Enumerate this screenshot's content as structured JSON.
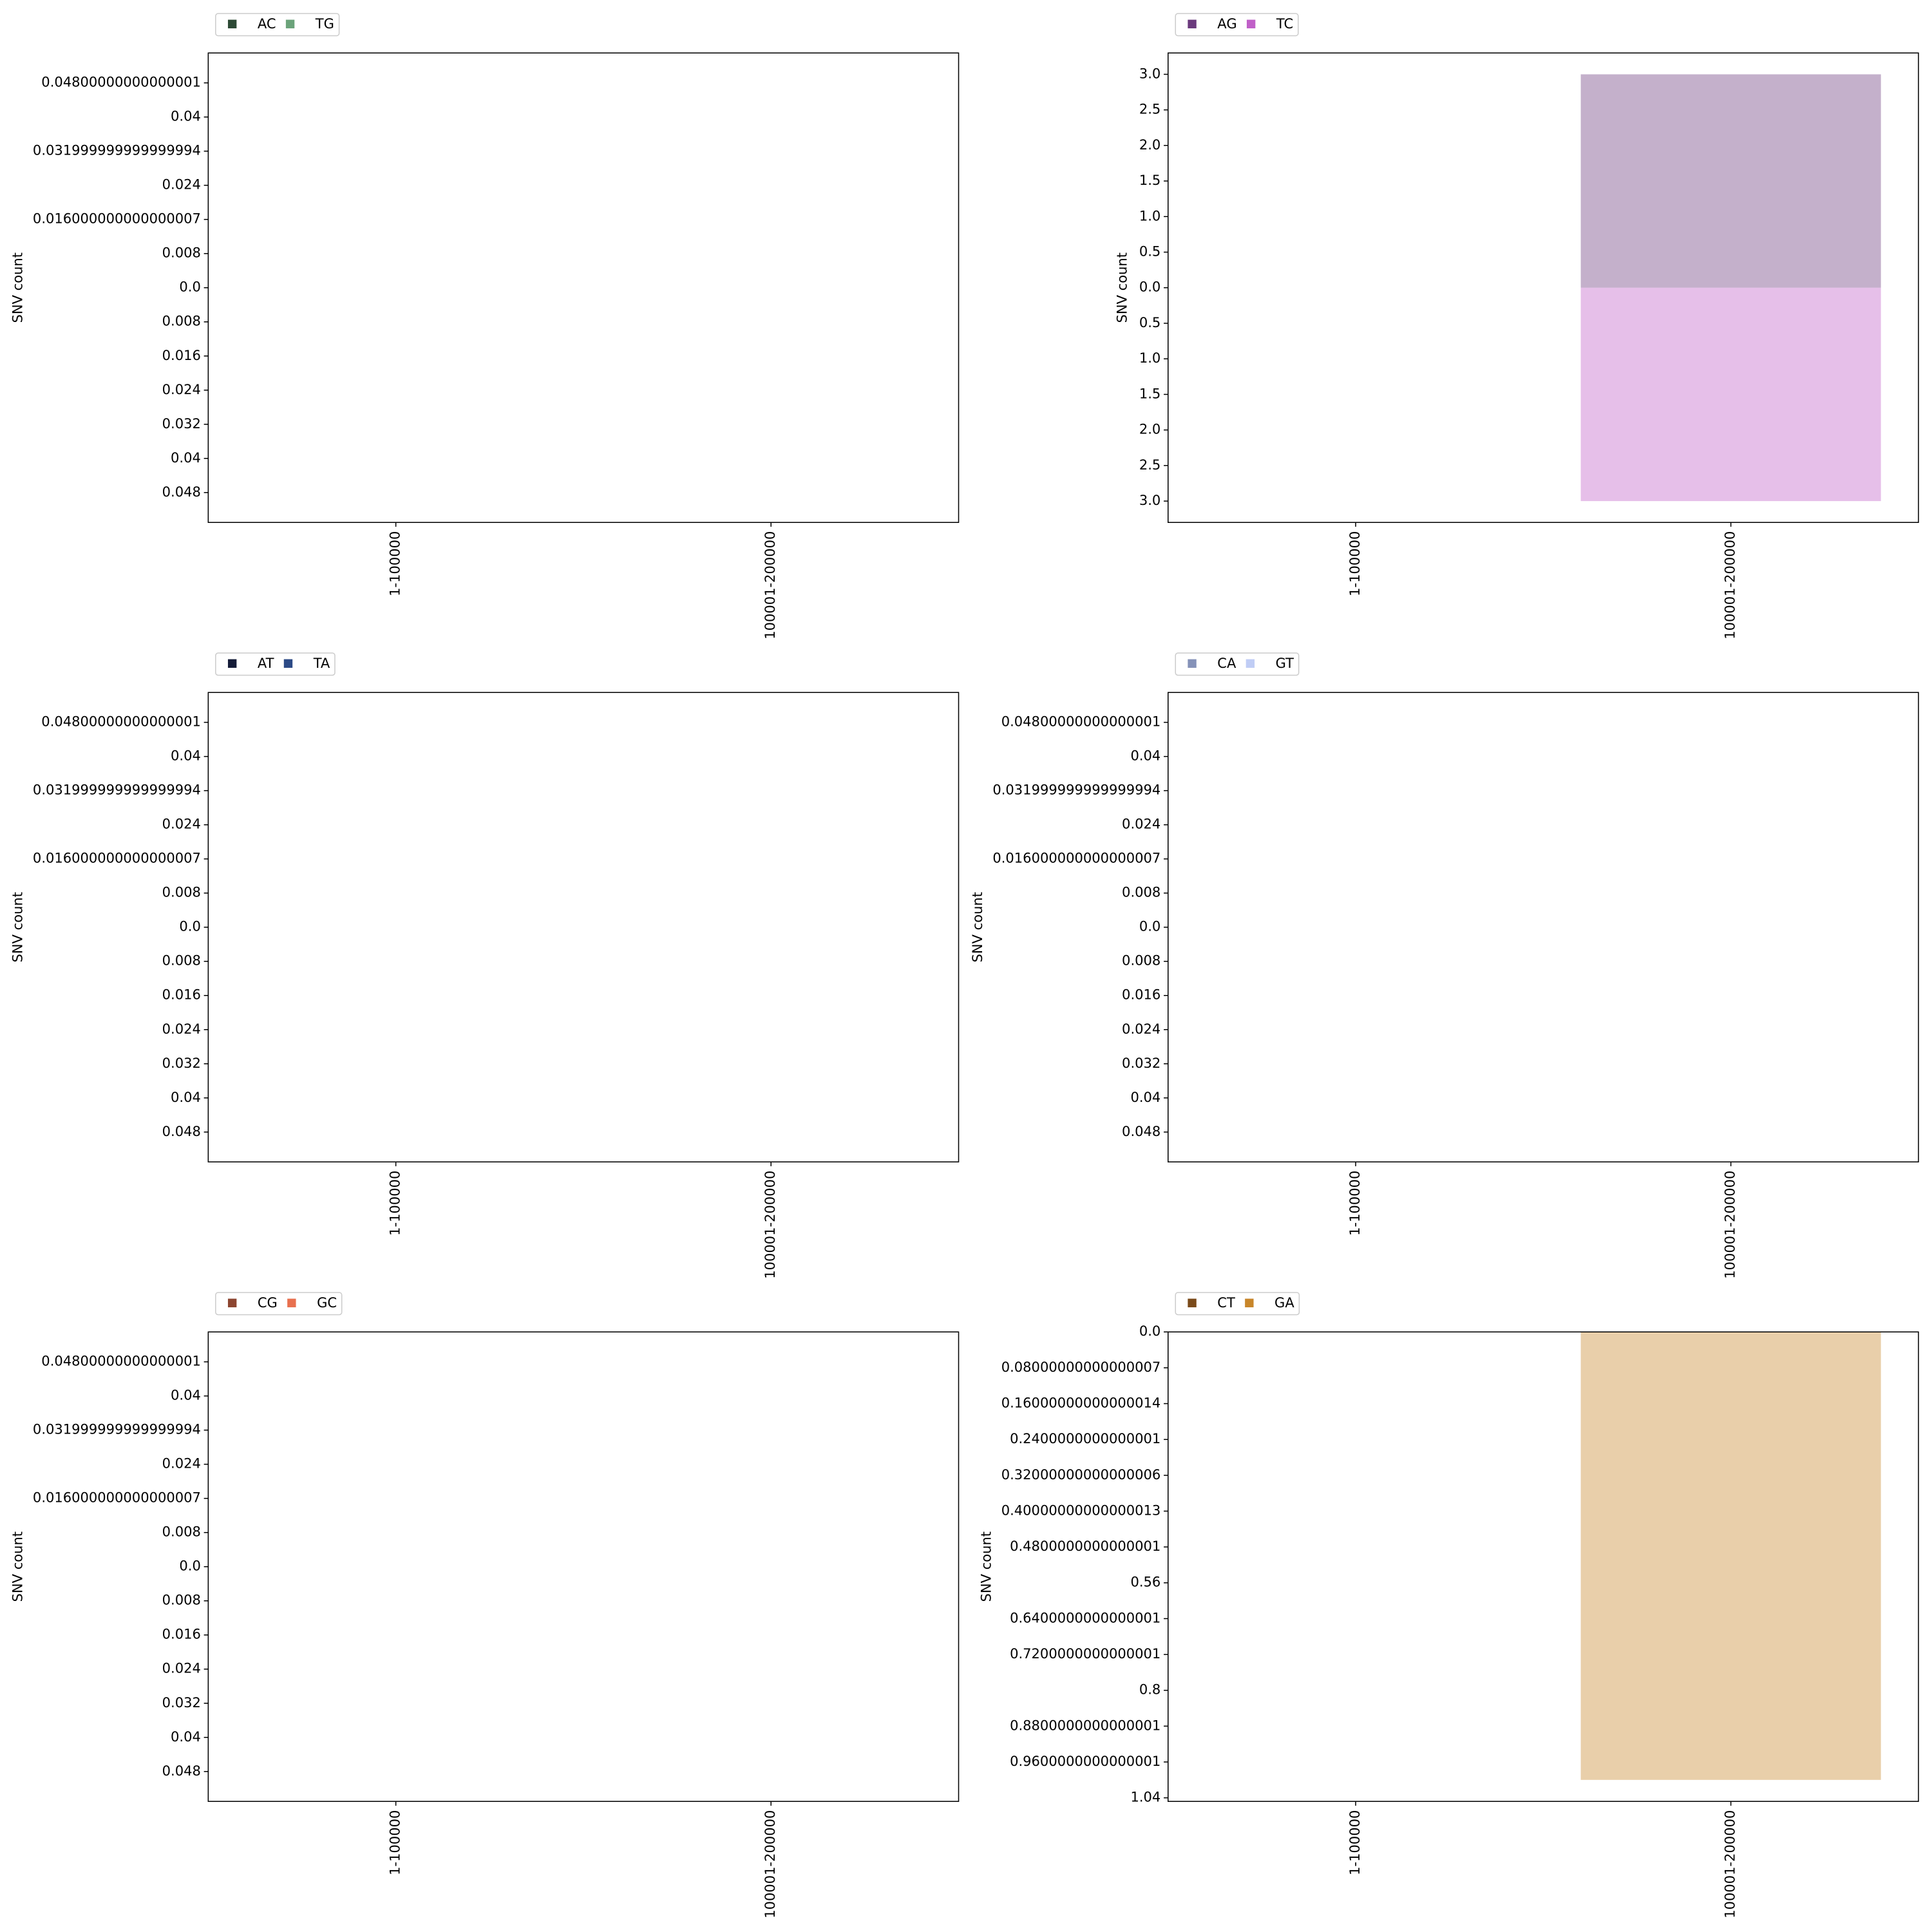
{
  "chart_data": [
    {
      "type": "bar",
      "y_label": "SNV count",
      "categories": [
        "1-100000",
        "100001-200000"
      ],
      "series": [
        {
          "name": "AC",
          "color": "#2d4a35",
          "values": [
            0,
            0
          ]
        },
        {
          "name": "TG",
          "color": "#6ba37a",
          "values": [
            0,
            0
          ]
        }
      ],
      "ylim": [
        -0.055,
        0.055
      ],
      "yticks": [
        0.04800000000000001,
        0.04,
        0.031999999999999994,
        0.024,
        0.016000000000000007,
        0.008,
        {
          "value": 0,
          "label": "0.0"
        },
        {
          "value": -0.008,
          "label": "0.008"
        },
        {
          "value": -0.016,
          "label": "0.016"
        },
        {
          "value": -0.024,
          "label": "0.024"
        },
        {
          "value": -0.032,
          "label": "0.032"
        },
        {
          "value": -0.04,
          "label": "0.04"
        },
        {
          "value": -0.048,
          "label": "0.048"
        }
      ]
    },
    {
      "type": "bar",
      "y_label": "SNV count",
      "categories": [
        "1-100000",
        "100001-200000"
      ],
      "series": [
        {
          "name": "AG",
          "color": "#6b3a7d",
          "values": [
            0,
            3
          ]
        },
        {
          "name": "TC",
          "color": "#c060c8",
          "values": [
            0,
            -3
          ]
        }
      ],
      "ylim": [
        -3.3,
        3.3
      ],
      "yticks": [
        {
          "value": 3,
          "label": "3.0"
        },
        2.5,
        {
          "value": 2,
          "label": "2.0"
        },
        1.5,
        {
          "value": 1,
          "label": "1.0"
        },
        0.5,
        {
          "value": 0,
          "label": "0.0"
        },
        {
          "value": -0.5,
          "label": "0.5"
        },
        {
          "value": -1,
          "label": "1.0"
        },
        {
          "value": -1.5,
          "label": "1.5"
        },
        {
          "value": -2,
          "label": "2.0"
        },
        {
          "value": -2.5,
          "label": "2.5"
        },
        {
          "value": -3,
          "label": "3.0"
        }
      ]
    },
    {
      "type": "bar",
      "y_label": "SNV count",
      "categories": [
        "1-100000",
        "100001-200000"
      ],
      "series": [
        {
          "name": "AT",
          "color": "#151c38",
          "values": [
            0,
            0
          ]
        },
        {
          "name": "TA",
          "color": "#2c4a86",
          "values": [
            0,
            0
          ]
        }
      ],
      "ylim": [
        -0.055,
        0.055
      ],
      "yticks": [
        0.04800000000000001,
        0.04,
        0.031999999999999994,
        0.024,
        0.016000000000000007,
        0.008,
        {
          "value": 0,
          "label": "0.0"
        },
        {
          "value": -0.008,
          "label": "0.008"
        },
        {
          "value": -0.016,
          "label": "0.016"
        },
        {
          "value": -0.024,
          "label": "0.024"
        },
        {
          "value": -0.032,
          "label": "0.032"
        },
        {
          "value": -0.04,
          "label": "0.04"
        },
        {
          "value": -0.048,
          "label": "0.048"
        }
      ]
    },
    {
      "type": "bar",
      "y_label": "SNV count",
      "categories": [
        "1-100000",
        "100001-200000"
      ],
      "series": [
        {
          "name": "CA",
          "color": "#8592b8",
          "values": [
            0,
            0
          ]
        },
        {
          "name": "GT",
          "color": "#c0cdf5",
          "values": [
            0,
            0
          ]
        }
      ],
      "ylim": [
        -0.055,
        0.055
      ],
      "yticks": [
        0.04800000000000001,
        0.04,
        0.031999999999999994,
        0.024,
        0.016000000000000007,
        0.008,
        {
          "value": 0,
          "label": "0.0"
        },
        {
          "value": -0.008,
          "label": "0.008"
        },
        {
          "value": -0.016,
          "label": "0.016"
        },
        {
          "value": -0.024,
          "label": "0.024"
        },
        {
          "value": -0.032,
          "label": "0.032"
        },
        {
          "value": -0.04,
          "label": "0.04"
        },
        {
          "value": -0.048,
          "label": "0.048"
        }
      ]
    },
    {
      "type": "bar",
      "y_label": "SNV count",
      "categories": [
        "1-100000",
        "100001-200000"
      ],
      "series": [
        {
          "name": "CG",
          "color": "#8c4530",
          "values": [
            0,
            0
          ]
        },
        {
          "name": "GC",
          "color": "#e8704f",
          "values": [
            0,
            0
          ]
        }
      ],
      "ylim": [
        -0.055,
        0.055
      ],
      "yticks": [
        0.04800000000000001,
        0.04,
        0.031999999999999994,
        0.024,
        0.016000000000000007,
        0.008,
        {
          "value": 0,
          "label": "0.0"
        },
        {
          "value": -0.008,
          "label": "0.008"
        },
        {
          "value": -0.016,
          "label": "0.016"
        },
        {
          "value": -0.024,
          "label": "0.024"
        },
        {
          "value": -0.032,
          "label": "0.032"
        },
        {
          "value": -0.04,
          "label": "0.04"
        },
        {
          "value": -0.048,
          "label": "0.048"
        }
      ]
    },
    {
      "type": "bar",
      "y_label": "SNV count",
      "categories": [
        "1-100000",
        "100001-200000"
      ],
      "series": [
        {
          "name": "CT",
          "color": "#7a4a1a",
          "values": [
            0,
            0
          ]
        },
        {
          "name": "GA",
          "color": "#c8862a",
          "values": [
            0,
            -1
          ]
        }
      ],
      "ylim": [
        -1.048,
        0
      ],
      "yticks": [
        {
          "value": 0,
          "label": "0.0"
        },
        {
          "value": -0.08000000000000007,
          "label": "0.08000000000000007"
        },
        {
          "value": -0.16000000000000014,
          "label": "0.16000000000000014"
        },
        {
          "value": -0.2400000000000001,
          "label": "0.2400000000000001"
        },
        {
          "value": -0.32000000000000006,
          "label": "0.32000000000000006"
        },
        {
          "value": -0.40000000000000013,
          "label": "0.40000000000000013"
        },
        {
          "value": -0.4800000000000001,
          "label": "0.4800000000000001"
        },
        {
          "value": -0.56,
          "label": "0.56"
        },
        {
          "value": -0.6400000000000001,
          "label": "0.6400000000000001"
        },
        {
          "value": -0.7200000000000001,
          "label": "0.7200000000000001"
        },
        {
          "value": -0.8,
          "label": "0.8"
        },
        {
          "value": -0.8800000000000001,
          "label": "0.8800000000000001"
        },
        {
          "value": -0.9600000000000001,
          "label": "0.9600000000000001"
        },
        {
          "value": -1.04,
          "label": "1.04"
        }
      ]
    }
  ]
}
